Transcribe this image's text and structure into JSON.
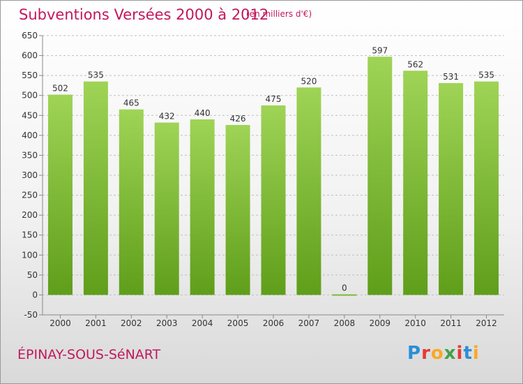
{
  "header": {
    "title": "Subventions Versées 2000 à 2012",
    "subtitle": "(en milliers d'€)"
  },
  "footer": {
    "commune": "ÉPINAY-SOUS-SéNART",
    "brand_letters": [
      "P",
      "r",
      "o",
      "x",
      "i",
      "t",
      "i"
    ],
    "brand_colors": [
      "#2a8fd6",
      "#e53935",
      "#f9a825",
      "#43a047",
      "#e53935",
      "#2a8fd6",
      "#f9a825"
    ]
  },
  "colors": {
    "bar_light": "#9fd456",
    "bar_dark": "#5f9e1a",
    "grid": "#bfbfbf",
    "text": "#333333",
    "accent": "#c2185b"
  },
  "chart_data": {
    "type": "bar",
    "categories": [
      "2000",
      "2001",
      "2002",
      "2003",
      "2004",
      "2005",
      "2006",
      "2007",
      "2008",
      "2009",
      "2010",
      "2011",
      "2012"
    ],
    "values": [
      502,
      535,
      465,
      432,
      440,
      426,
      475,
      520,
      0,
      597,
      562,
      531,
      535
    ],
    "title": "Subventions Versées 2000 à 2012",
    "ylabel": "",
    "xlabel": "",
    "ylim": [
      -50,
      650
    ],
    "yticks": [
      -50,
      0,
      50,
      100,
      150,
      200,
      250,
      300,
      350,
      400,
      450,
      500,
      550,
      600,
      650
    ],
    "grid": true
  }
}
